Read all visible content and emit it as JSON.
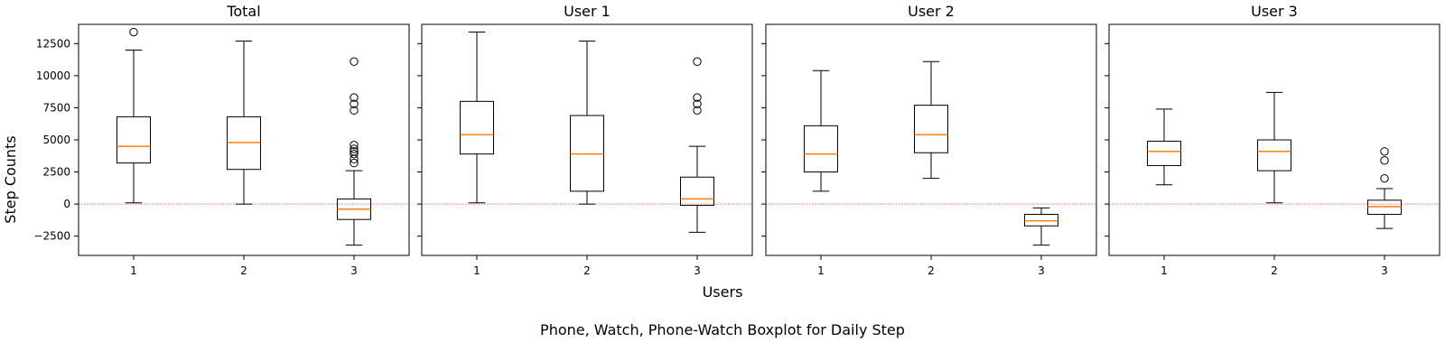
{
  "figure": {
    "ylabel": "Step Counts",
    "xlabel": "Users",
    "caption": "Phone, Watch, Phone-Watch Boxplot for Daily Step"
  },
  "colors": {
    "median": "#ff7f0e",
    "box": "#000000",
    "zero_line": "#ff6f6f"
  },
  "chart_data": {
    "type": "boxplot",
    "title": "",
    "ylim": [
      -4000,
      14000
    ],
    "yticks": [
      -2500,
      0,
      2500,
      5000,
      7500,
      10000,
      12500
    ],
    "ytick_labels": [
      "−2500",
      "0",
      "2500",
      "5000",
      "7500",
      "10000",
      "12500"
    ],
    "reference_line": 0,
    "panels": [
      {
        "title": "Total",
        "categories": [
          "1",
          "2",
          "3"
        ],
        "boxes": [
          {
            "whislo": 100,
            "q1": 3200,
            "med": 4500,
            "q3": 6800,
            "whishi": 12000,
            "fliers": [
              13400
            ]
          },
          {
            "whislo": 0,
            "q1": 2700,
            "med": 4800,
            "q3": 6800,
            "whishi": 12700,
            "fliers": []
          },
          {
            "whislo": -3200,
            "q1": -1200,
            "med": -400,
            "q3": 400,
            "whishi": 2600,
            "fliers": [
              3200,
              3500,
              3900,
              4100,
              4300,
              4600,
              7300,
              7800,
              8300,
              11100
            ]
          }
        ]
      },
      {
        "title": "User 1",
        "categories": [
          "1",
          "2",
          "3"
        ],
        "boxes": [
          {
            "whislo": 100,
            "q1": 3900,
            "med": 5400,
            "q3": 8000,
            "whishi": 13400,
            "fliers": []
          },
          {
            "whislo": 0,
            "q1": 1000,
            "med": 3900,
            "q3": 6900,
            "whishi": 12700,
            "fliers": []
          },
          {
            "whislo": -2200,
            "q1": -100,
            "med": 400,
            "q3": 2100,
            "whishi": 4500,
            "fliers": [
              7300,
              7800,
              8300,
              11100
            ]
          }
        ]
      },
      {
        "title": "User 2",
        "categories": [
          "1",
          "2",
          "3"
        ],
        "boxes": [
          {
            "whislo": 1000,
            "q1": 2500,
            "med": 3900,
            "q3": 6100,
            "whishi": 10400,
            "fliers": []
          },
          {
            "whislo": 2000,
            "q1": 4000,
            "med": 5400,
            "q3": 7700,
            "whishi": 11100,
            "fliers": []
          },
          {
            "whislo": -3200,
            "q1": -1700,
            "med": -1300,
            "q3": -800,
            "whishi": -300,
            "fliers": []
          }
        ]
      },
      {
        "title": "User 3",
        "categories": [
          "1",
          "2",
          "3"
        ],
        "boxes": [
          {
            "whislo": 1500,
            "q1": 3000,
            "med": 4100,
            "q3": 4900,
            "whishi": 7400,
            "fliers": []
          },
          {
            "whislo": 100,
            "q1": 2600,
            "med": 4100,
            "q3": 5000,
            "whishi": 8700,
            "fliers": []
          },
          {
            "whislo": -1900,
            "q1": -800,
            "med": -200,
            "q3": 300,
            "whishi": 1200,
            "fliers": [
              2000,
              3400,
              4100
            ]
          }
        ]
      }
    ]
  }
}
